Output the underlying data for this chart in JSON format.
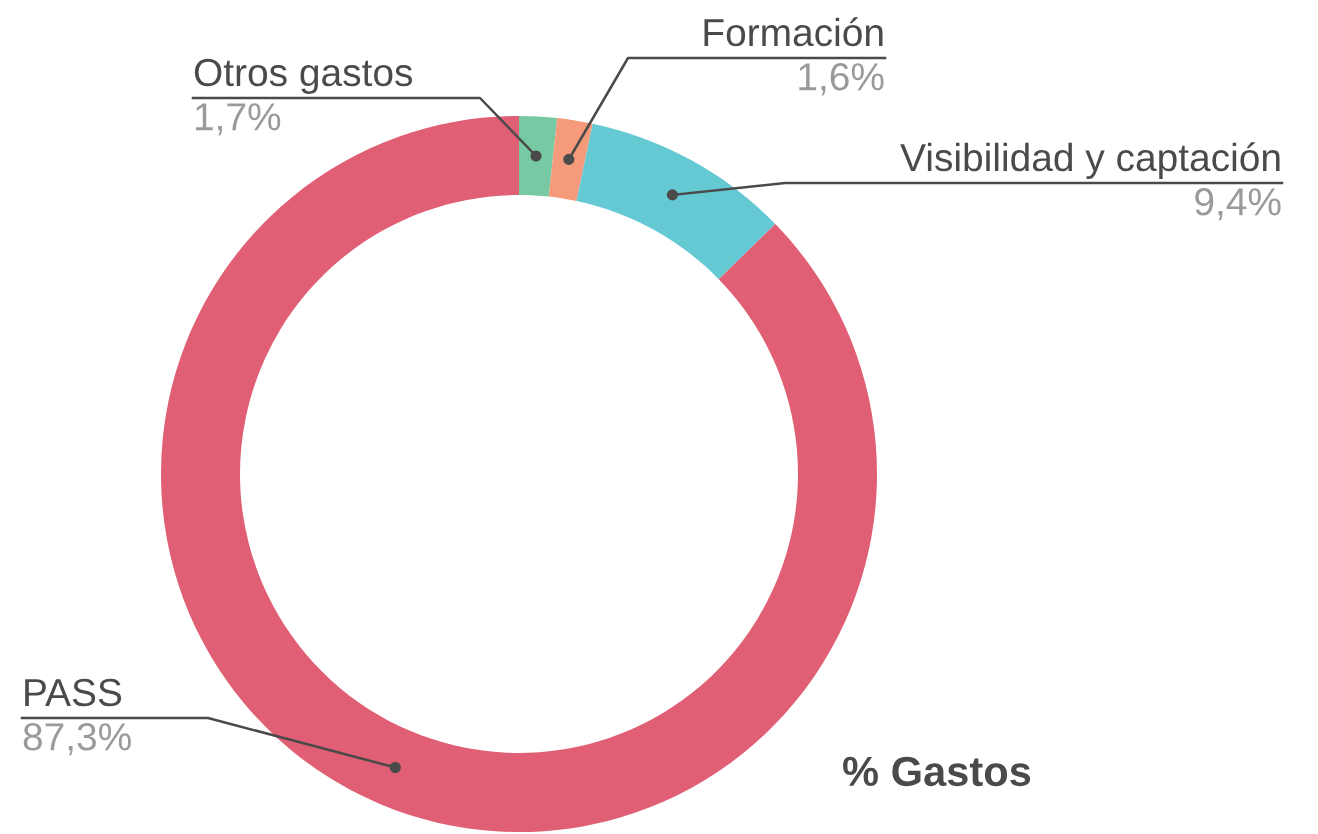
{
  "chart_data": {
    "type": "donut",
    "title": "% Gastos",
    "categories": [
      "Otros gastos",
      "Formación",
      "Visibilidad y captación",
      "PASS"
    ],
    "values": [
      1.7,
      1.6,
      9.4,
      87.3
    ],
    "value_labels": [
      "1,7%",
      "1,6%",
      "9,4%",
      "87,3%"
    ],
    "colors": [
      "#77c9a4",
      "#f59a7a",
      "#64c9d2",
      "#e05f74"
    ],
    "legend": false
  }
}
